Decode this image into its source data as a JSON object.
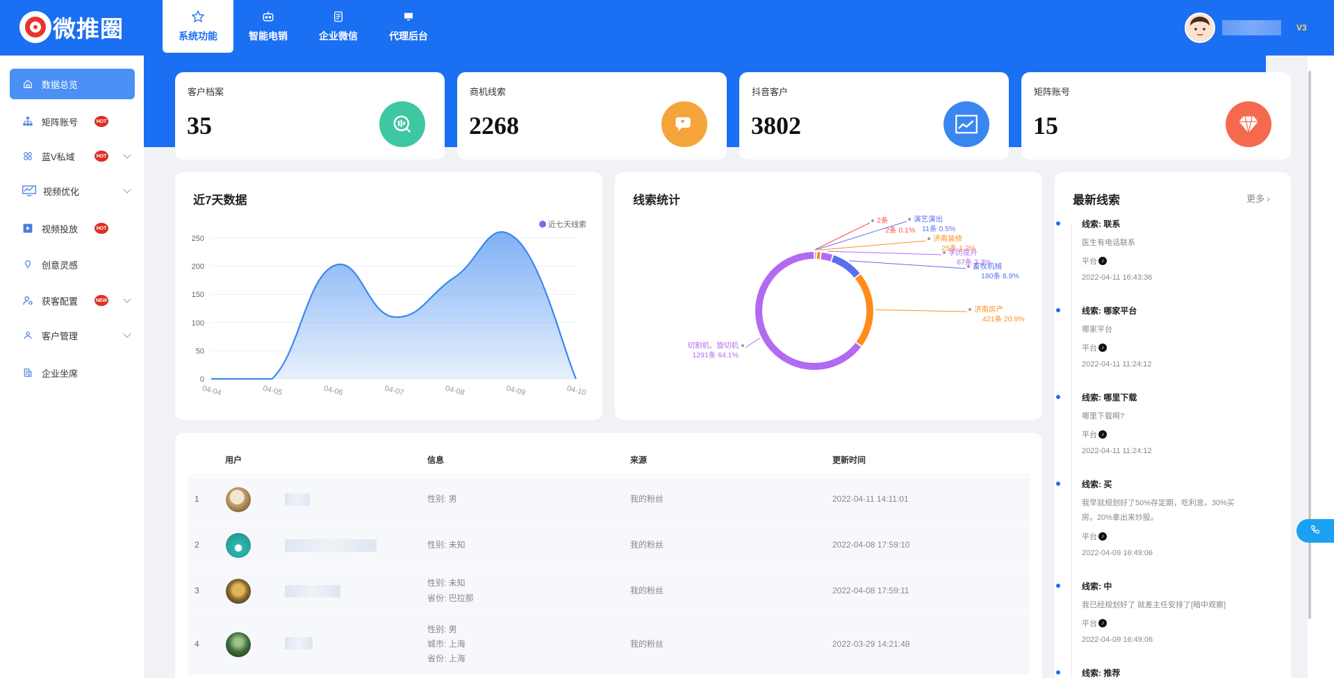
{
  "app": {
    "name": "微推圈",
    "vip_level": "V3"
  },
  "topnav": {
    "tabs": [
      {
        "label": "系统功能",
        "icon": "star-icon",
        "active": true
      },
      {
        "label": "智能电销",
        "icon": "robot-icon"
      },
      {
        "label": "企业微信",
        "icon": "document-icon"
      },
      {
        "label": "代理后台",
        "icon": "monitor-icon"
      }
    ]
  },
  "sidebar": {
    "items": [
      {
        "label": "数据总览",
        "icon": "home-icon",
        "active": true
      },
      {
        "label": "矩阵账号",
        "icon": "org-chart-icon",
        "badge": "HOT"
      },
      {
        "label": "蓝V私域",
        "icon": "grid-icon",
        "badge": "HOT",
        "expandable": true
      },
      {
        "label": "视频优化",
        "icon": "monitor-chart-icon",
        "expandable": true
      },
      {
        "label": "视频投放",
        "icon": "play-icon",
        "badge": "HOT"
      },
      {
        "label": "创意灵感",
        "icon": "bulb-icon"
      },
      {
        "label": "获客配置",
        "icon": "user-gear-icon",
        "badge": "NEW",
        "expandable": true
      },
      {
        "label": "客户管理",
        "icon": "user-icon",
        "expandable": true
      },
      {
        "label": "企业坐席",
        "icon": "building-icon"
      }
    ]
  },
  "stats": [
    {
      "label": "客户档案",
      "value": "35",
      "color": "#3ec7a0",
      "icon": "file-search-icon"
    },
    {
      "label": "商机线索",
      "value": "2268",
      "color": "#f5a43a",
      "icon": "chat-bubble-icon"
    },
    {
      "label": "抖音客户",
      "value": "3802",
      "color": "#3a86f0",
      "icon": "chart-window-icon"
    },
    {
      "label": "矩阵账号",
      "value": "15",
      "color": "#f56a4e",
      "icon": "diamond-icon"
    }
  ],
  "line_card": {
    "title": "近7天数据"
  },
  "pie_card": {
    "title": "线索统计"
  },
  "leads": {
    "title": "最新线索",
    "more": "更多",
    "items": [
      {
        "title": "线索: 联系",
        "desc": "医生有电话联系",
        "platform": "平台",
        "time": "2022-04-11 16:43:36"
      },
      {
        "title": "线索: 哪家平台",
        "desc": "哪家平台",
        "platform": "平台",
        "time": "2022-04-11 11:24:12"
      },
      {
        "title": "线索: 哪里下载",
        "desc": "哪里下载啊?",
        "platform": "平台",
        "time": "2022-04-11 11:24:12"
      },
      {
        "title": "线索: 买",
        "desc": "我早就规划好了50%存定期，吃利息，30%买房。20%拿出来炒股。",
        "platform": "平台",
        "time": "2022-04-09 16:49:06"
      },
      {
        "title": "线索: 中",
        "desc": "我已经规划好了 就差主任安排了[暗中观察]",
        "platform": "平台",
        "time": "2022-04-09 16:49:06"
      },
      {
        "title": "线索: 推荐",
        "desc": "",
        "platform": "",
        "time": ""
      }
    ]
  },
  "table": {
    "headers": {
      "user": "用户",
      "info": "信息",
      "source": "来源",
      "updated": "更新时间"
    },
    "rows": [
      {
        "idx": "1",
        "info": [
          "性别: 男"
        ],
        "source": "我的粉丝",
        "time": "2022-04-11 14:11:01",
        "avatar_color": "#c9a46a"
      },
      {
        "idx": "2",
        "info": [
          "性别: 未知"
        ],
        "source": "我的粉丝",
        "time": "2022-04-08 17:59:10",
        "avatar_color": "#2fb6b0"
      },
      {
        "idx": "3",
        "info": [
          "性别: 未知",
          "省份: 巴拉那"
        ],
        "source": "我的粉丝",
        "time": "2022-04-08 17:59:11",
        "avatar_color": "#8a6b2c"
      },
      {
        "idx": "4",
        "info": [
          "性别: 男",
          "城市: 上海",
          "省份: 上海"
        ],
        "source": "我的粉丝",
        "time": "2022-03-29 14:21:48",
        "avatar_color": "#3f6b3a"
      }
    ]
  },
  "chart_data": [
    {
      "type": "area",
      "title": "近7天数据",
      "legend": "近七天线索",
      "legend_position": "top-right",
      "x": [
        "04-04",
        "04-05",
        "04-06",
        "04-07",
        "04-08",
        "04-09",
        "04-10"
      ],
      "series": [
        {
          "name": "近七天线索",
          "values": [
            0,
            0,
            200,
            110,
            180,
            250,
            0
          ]
        }
      ],
      "y_ticks": [
        0,
        50,
        100,
        150,
        200,
        250
      ],
      "ylim": [
        0,
        250
      ],
      "grid": true,
      "color": "#3a86f0"
    },
    {
      "type": "pie",
      "title": "线索统计",
      "slices": [
        {
          "name": "切割机、旋切机",
          "count": 1291,
          "percent": 64.1,
          "label": "1291条  64.1%",
          "color": "#b36af0"
        },
        {
          "name": "济南房产",
          "count": 421,
          "percent": 20.9,
          "label": "421条  20.9%",
          "color": "#ff8c1a"
        },
        {
          "name": "畜牧机械",
          "count": 180,
          "percent": 8.9,
          "label": "180条  8.9%",
          "color": "#5a6ff0"
        },
        {
          "name": "学历提升",
          "count": 67,
          "percent": 3.3,
          "label": "67条  3.3%",
          "color": "#b36af0"
        },
        {
          "name": "济南装修",
          "count": 25,
          "percent": 1.2,
          "label": "25条  1.2%",
          "color": "#ff8c1a"
        },
        {
          "name": "演艺演出",
          "count": 11,
          "percent": 0.5,
          "label": "11条  0.5%",
          "color": "#5a6ff0"
        },
        {
          "name": "2条",
          "count": 2,
          "percent": 0.1,
          "label": "2条  0.1%",
          "color": "#ff4d4d"
        }
      ]
    }
  ]
}
